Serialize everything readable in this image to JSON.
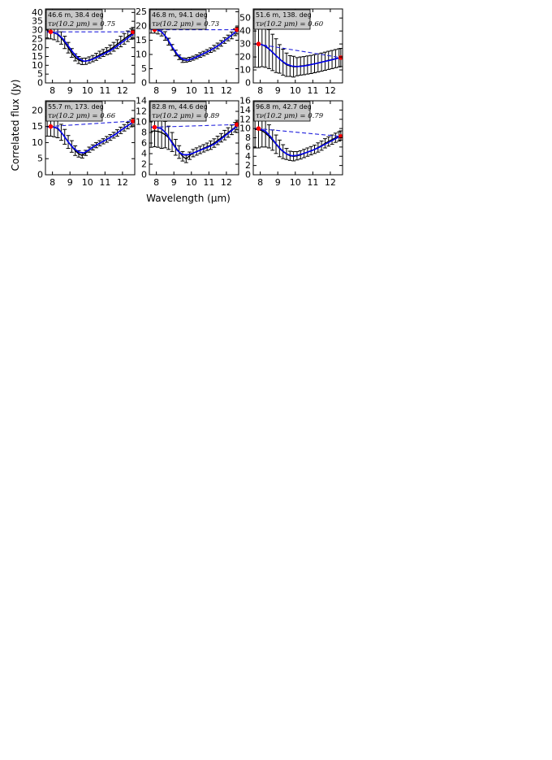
{
  "figure": {
    "xlabel": "Wavelength (μm)",
    "ylabel": "Correlated flux (Jy)"
  },
  "chart_data": [
    {
      "type": "line",
      "annotation_line1": "46.6 m, 38.4 deg",
      "annotation_line2": "τν(10.2 μm) = 0.75",
      "xlim": [
        7.6,
        12.7
      ],
      "ylim": [
        0,
        42
      ],
      "xticks": [
        8,
        9,
        10,
        11,
        12
      ],
      "yticks": [
        0,
        5,
        10,
        15,
        20,
        25,
        30,
        35,
        40
      ],
      "colors": {
        "data": "#000000",
        "model": "#0000ee",
        "continuum": "#2222dd",
        "anchor": "#ff0000"
      },
      "series": [
        {
          "x": [
            7.7,
            7.9,
            8.1,
            8.3,
            8.5,
            8.7,
            8.9,
            9.1,
            9.3,
            9.5,
            9.7,
            9.9,
            10.1,
            10.3,
            10.5,
            10.7,
            10.9,
            11.1,
            11.3,
            11.5,
            11.7,
            11.9,
            12.1,
            12.3,
            12.5,
            12.6
          ],
          "y": [
            29.5,
            29,
            28.5,
            27.5,
            25.5,
            23,
            20,
            17,
            14.5,
            13,
            12.2,
            12.3,
            13,
            13.8,
            14.8,
            16,
            17,
            18,
            19,
            20.5,
            22,
            23.5,
            25,
            26.5,
            27.8,
            28.5
          ],
          "err": [
            4,
            4,
            4,
            4,
            3.5,
            3.5,
            3,
            2.5,
            2,
            2,
            1.8,
            1.8,
            1.8,
            1.8,
            2,
            2,
            2,
            2,
            2.5,
            2.5,
            2.5,
            3,
            3,
            3,
            3,
            3
          ]
        },
        {
          "x": [
            7.7,
            8.0,
            8.3,
            8.6,
            8.9,
            9.2,
            9.5,
            9.8,
            10.1,
            10.4,
            10.7,
            11.0,
            11.3,
            11.6,
            11.9,
            12.2,
            12.5,
            12.65
          ],
          "y": [
            29,
            28.8,
            27.8,
            25,
            21,
            17,
            13.8,
            12.3,
            12.7,
            13.9,
            15.3,
            16.8,
            18.3,
            20.2,
            22.5,
            24.7,
            27,
            28
          ]
        },
        {
          "x": [
            7.8,
            12.6
          ],
          "y": [
            29,
            29
          ]
        }
      ],
      "anchors": [
        {
          "x": 7.9,
          "y": 29
        },
        {
          "x": 12.6,
          "y": 29
        }
      ]
    },
    {
      "type": "line",
      "annotation_line1": "46.8 m, 94.1 deg",
      "annotation_line2": "τν(10.2 μm) = 0.73",
      "xlim": [
        7.6,
        12.7
      ],
      "ylim": [
        0,
        26
      ],
      "xticks": [
        8,
        9,
        10,
        11,
        12
      ],
      "yticks": [
        0,
        5,
        10,
        15,
        20,
        25
      ],
      "colors": {
        "data": "#000000",
        "model": "#0000ee",
        "continuum": "#2222dd",
        "anchor": "#ff0000"
      },
      "series": [
        {
          "x": [
            7.7,
            7.9,
            8.1,
            8.3,
            8.5,
            8.7,
            8.9,
            9.1,
            9.3,
            9.5,
            9.7,
            9.9,
            10.1,
            10.3,
            10.5,
            10.7,
            10.9,
            11.1,
            11.3,
            11.5,
            11.7,
            11.9,
            12.1,
            12.3,
            12.5,
            12.6
          ],
          "y": [
            19,
            19,
            18.7,
            18,
            16.5,
            14.5,
            12.5,
            10.5,
            9,
            8,
            8,
            8.3,
            8.7,
            9.2,
            9.8,
            10.3,
            10.9,
            11.5,
            12.2,
            13,
            13.9,
            14.9,
            15.8,
            16.7,
            17.8,
            18.4
          ],
          "err": [
            1.5,
            1.5,
            1.5,
            1.5,
            1.5,
            1.2,
            1,
            1,
            0.8,
            0.8,
            0.7,
            0.7,
            0.7,
            0.7,
            0.8,
            0.8,
            0.8,
            0.8,
            1,
            1,
            1,
            1,
            1,
            1.2,
            1.2,
            1.2
          ]
        },
        {
          "x": [
            7.7,
            8.0,
            8.3,
            8.6,
            8.9,
            9.2,
            9.5,
            9.8,
            10.1,
            10.4,
            10.7,
            11.0,
            11.3,
            11.6,
            11.9,
            12.2,
            12.5,
            12.65
          ],
          "y": [
            18.8,
            18.8,
            18,
            15.8,
            12.7,
            10,
            8.3,
            8,
            8.6,
            9.4,
            10.3,
            11.2,
            12.2,
            13.4,
            14.9,
            16.3,
            17.8,
            18.6
          ]
        },
        {
          "x": [
            7.8,
            12.6
          ],
          "y": [
            18.7,
            18.7
          ]
        }
      ],
      "anchors": [
        {
          "x": 7.9,
          "y": 18.7
        },
        {
          "x": 12.6,
          "y": 18.7
        }
      ]
    },
    {
      "type": "line",
      "annotation_line1": "51.6 m, 138. deg",
      "annotation_line2": "τν(10.2 μm) = 0.60",
      "xlim": [
        7.6,
        12.7
      ],
      "ylim": [
        0,
        57
      ],
      "xticks": [
        8,
        9,
        10,
        11,
        12
      ],
      "yticks": [
        0,
        10,
        20,
        30,
        40,
        50
      ],
      "colors": {
        "data": "#000000",
        "model": "#0000ee",
        "continuum": "#2222dd",
        "anchor": "#ff0000"
      },
      "series": [
        {
          "x": [
            7.7,
            7.9,
            8.1,
            8.3,
            8.5,
            8.7,
            8.9,
            9.1,
            9.3,
            9.5,
            9.7,
            9.9,
            10.1,
            10.3,
            10.5,
            10.7,
            10.9,
            11.1,
            11.3,
            11.5,
            11.7,
            11.9,
            12.1,
            12.3,
            12.5,
            12.6
          ],
          "y": [
            30,
            30,
            29.5,
            28,
            26,
            23.5,
            21,
            18.5,
            16,
            14,
            13,
            12.5,
            12.5,
            13,
            13.3,
            13.8,
            14.2,
            14.8,
            15.4,
            16,
            16.7,
            17.4,
            18,
            18.7,
            19.3,
            19.6
          ],
          "err": [
            18,
            18,
            17,
            16,
            15,
            14,
            13,
            11,
            10,
            9,
            8,
            8,
            7,
            7,
            7,
            7,
            7,
            7,
            7,
            7,
            7,
            7,
            7,
            7,
            7,
            7
          ]
        },
        {
          "x": [
            7.7,
            8.0,
            8.3,
            8.6,
            8.9,
            9.2,
            9.5,
            9.8,
            10.1,
            10.4,
            10.7,
            11.0,
            11.3,
            11.6,
            11.9,
            12.2,
            12.5,
            12.65
          ],
          "y": [
            30,
            29.8,
            28.5,
            25,
            21,
            17.3,
            14.5,
            13,
            12.6,
            12.9,
            13.5,
            14.4,
            15.3,
            16.3,
            17.2,
            18.2,
            19.2,
            19.7
          ]
        },
        {
          "x": [
            7.8,
            12.6
          ],
          "y": [
            30,
            19.5
          ]
        }
      ],
      "anchors": [
        {
          "x": 7.9,
          "y": 30
        },
        {
          "x": 12.6,
          "y": 19.5
        }
      ]
    },
    {
      "type": "line",
      "annotation_line1": "55.7 m, 173. deg",
      "annotation_line2": "τν(10.2 μm) = 0.66",
      "xlim": [
        7.6,
        12.7
      ],
      "ylim": [
        0,
        23
      ],
      "xticks": [
        8,
        9,
        10,
        11,
        12
      ],
      "yticks": [
        0,
        5,
        10,
        15,
        20
      ],
      "colors": {
        "data": "#000000",
        "model": "#0000ee",
        "continuum": "#2222dd",
        "anchor": "#ff0000"
      },
      "series": [
        {
          "x": [
            7.7,
            7.9,
            8.1,
            8.3,
            8.5,
            8.7,
            8.9,
            9.1,
            9.3,
            9.5,
            9.7,
            9.9,
            10.1,
            10.3,
            10.5,
            10.7,
            10.9,
            11.1,
            11.3,
            11.5,
            11.7,
            11.9,
            12.1,
            12.3,
            12.5,
            12.6
          ],
          "y": [
            15,
            15,
            14.8,
            14.3,
            13.2,
            11.8,
            10.2,
            8.8,
            7.5,
            6.5,
            6,
            6.8,
            7.8,
            8.5,
            9.2,
            9.8,
            10.4,
            11,
            11.6,
            12.3,
            13,
            13.8,
            14.6,
            15.3,
            16,
            16.5
          ],
          "err": [
            3,
            3,
            3,
            2.8,
            2.5,
            2.3,
            2,
            1.8,
            1.5,
            1,
            0.8,
            0.8,
            0.8,
            0.8,
            0.8,
            0.8,
            0.8,
            0.9,
            0.9,
            0.9,
            1,
            1,
            1,
            1,
            1.1,
            1.1
          ]
        },
        {
          "x": [
            7.7,
            8.0,
            8.3,
            8.6,
            8.9,
            9.2,
            9.5,
            9.8,
            10.1,
            10.4,
            10.7,
            11.0,
            11.3,
            11.6,
            11.9,
            12.2,
            12.5,
            12.65
          ],
          "y": [
            14.9,
            14.9,
            14.5,
            12.5,
            10.2,
            8.3,
            7,
            6.8,
            7.8,
            8.9,
            9.8,
            10.7,
            11.6,
            12.6,
            13.8,
            14.9,
            16,
            16.6
          ]
        },
        {
          "x": [
            7.8,
            12.6
          ],
          "y": [
            15,
            16.7
          ]
        }
      ],
      "anchors": [
        {
          "x": 7.9,
          "y": 15
        },
        {
          "x": 12.6,
          "y": 16.7
        }
      ]
    },
    {
      "type": "line",
      "annotation_line1": "82.8 m, 44.6 deg",
      "annotation_line2": "τν(10.2 μm) = 0.89",
      "xlim": [
        7.6,
        12.7
      ],
      "ylim": [
        0,
        14
      ],
      "xticks": [
        8,
        9,
        10,
        11,
        12
      ],
      "yticks": [
        0,
        2,
        4,
        6,
        8,
        10,
        12,
        14
      ],
      "colors": {
        "data": "#000000",
        "model": "#0000ee",
        "continuum": "#2222dd",
        "anchor": "#ff0000"
      },
      "series": [
        {
          "x": [
            7.7,
            7.9,
            8.1,
            8.3,
            8.5,
            8.7,
            8.9,
            9.1,
            9.3,
            9.5,
            9.7,
            9.9,
            10.1,
            10.3,
            10.5,
            10.7,
            10.9,
            11.1,
            11.3,
            11.5,
            11.7,
            11.9,
            12.1,
            12.3,
            12.5,
            12.6
          ],
          "y": [
            8.2,
            8.3,
            8.2,
            8,
            7.6,
            7,
            6.2,
            5.2,
            4.3,
            3.5,
            3,
            3.6,
            4.1,
            4.4,
            4.7,
            5,
            5.3,
            5.6,
            6,
            6.5,
            7,
            7.5,
            8,
            8.5,
            9,
            9.4
          ],
          "err": [
            3,
            3,
            3,
            3,
            2.5,
            2.2,
            1.8,
            1.5,
            1.2,
            0.9,
            0.7,
            0.7,
            0.7,
            0.7,
            0.7,
            0.7,
            0.7,
            0.8,
            0.8,
            0.8,
            0.8,
            0.9,
            0.9,
            0.9,
            0.9,
            0.9
          ]
        },
        {
          "x": [
            7.7,
            8.0,
            8.3,
            8.6,
            8.9,
            9.2,
            9.5,
            9.8,
            10.1,
            10.4,
            10.7,
            11.0,
            11.3,
            11.6,
            11.9,
            12.2,
            12.5,
            12.65
          ],
          "y": [
            9,
            9,
            8.7,
            7.7,
            6,
            4.6,
            3.8,
            3.8,
            4.1,
            4.5,
            4.9,
            5.3,
            5.8,
            6.5,
            7.3,
            8.1,
            8.9,
            9.4
          ]
        },
        {
          "x": [
            7.8,
            12.6
          ],
          "y": [
            9,
            9.5
          ]
        }
      ],
      "anchors": [
        {
          "x": 7.9,
          "y": 9
        },
        {
          "x": 12.6,
          "y": 9.5
        }
      ]
    },
    {
      "type": "line",
      "annotation_line1": "96.8 m, 42.7 deg",
      "annotation_line2": "τν(10.2 μm) = 0.79",
      "xlim": [
        7.6,
        12.7
      ],
      "ylim": [
        0,
        16
      ],
      "xticks": [
        8,
        9,
        10,
        11,
        12
      ],
      "yticks": [
        0,
        2,
        4,
        6,
        8,
        10,
        12,
        14,
        16
      ],
      "colors": {
        "data": "#000000",
        "model": "#0000ee",
        "continuum": "#2222dd",
        "anchor": "#ff0000"
      },
      "series": [
        {
          "x": [
            7.7,
            7.9,
            8.1,
            8.3,
            8.5,
            8.7,
            8.9,
            9.1,
            9.3,
            9.5,
            9.7,
            9.9,
            10.1,
            10.3,
            10.5,
            10.7,
            10.9,
            11.1,
            11.3,
            11.5,
            11.7,
            11.9,
            12.1,
            12.3,
            12.5,
            12.6
          ],
          "y": [
            9.8,
            9.8,
            9.5,
            9,
            8.3,
            7.5,
            6.6,
            5.7,
            5,
            4.5,
            4.1,
            4,
            4.1,
            4.3,
            4.6,
            4.9,
            5.2,
            5.5,
            5.9,
            6.3,
            6.8,
            7.2,
            7.6,
            8,
            8.3,
            8.5
          ],
          "err": [
            4,
            4,
            3.5,
            3,
            2.5,
            2.2,
            2,
            1.8,
            1.5,
            1.2,
            1,
            1,
            0.9,
            0.9,
            0.9,
            0.9,
            0.9,
            0.9,
            1,
            1,
            1,
            1,
            1,
            1,
            1,
            1
          ]
        },
        {
          "x": [
            7.7,
            8.0,
            8.3,
            8.6,
            8.9,
            9.2,
            9.5,
            9.8,
            10.1,
            10.4,
            10.7,
            11.0,
            11.3,
            11.6,
            11.9,
            12.2,
            12.5,
            12.65
          ],
          "y": [
            10,
            9.9,
            9.4,
            8.2,
            6.7,
            5.4,
            4.5,
            4.1,
            4.2,
            4.5,
            4.9,
            5.3,
            5.8,
            6.4,
            7,
            7.6,
            8.2,
            8.5
          ]
        },
        {
          "x": [
            7.8,
            12.6
          ],
          "y": [
            10,
            8.3
          ]
        }
      ],
      "anchors": [
        {
          "x": 7.9,
          "y": 10
        },
        {
          "x": 12.6,
          "y": 8.3
        }
      ]
    }
  ]
}
